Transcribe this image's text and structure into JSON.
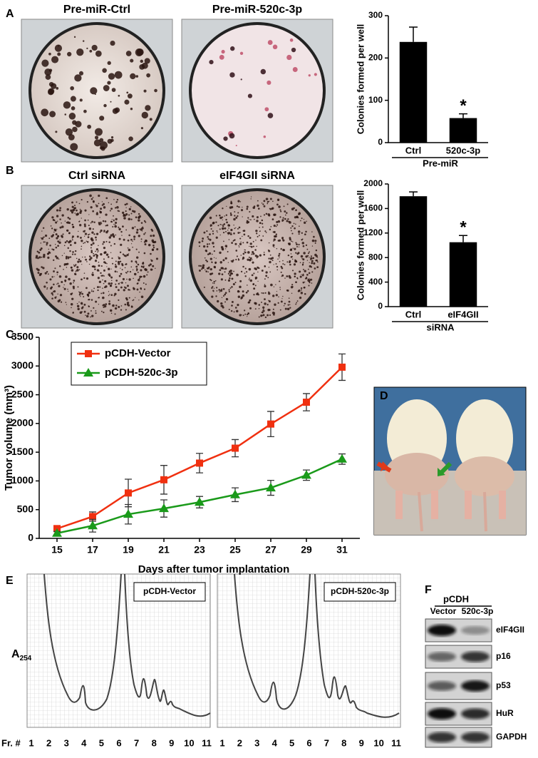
{
  "panel_labels": [
    "A",
    "B",
    "C",
    "D",
    "E",
    "F"
  ],
  "photos": {
    "A": [
      "Pre-miR-Ctrl",
      "Pre-miR-520c-3p"
    ],
    "B": [
      "Ctrl siRNA",
      "eIF4GII siRNA"
    ]
  },
  "chart_data": [
    {
      "type": "bar",
      "ylabel": "Colonies formed per well",
      "categories": [
        "Ctrl",
        "520c-3p"
      ],
      "group_label": "Pre-miR",
      "values": [
        238,
        58
      ],
      "errors": [
        35,
        10
      ],
      "annotations": [
        null,
        "*"
      ],
      "color": "#000000",
      "ylim": [
        0,
        300
      ],
      "yticks": [
        0,
        100,
        200,
        300
      ]
    },
    {
      "type": "bar",
      "ylabel": "Colonies formed per well",
      "categories": [
        "Ctrl",
        "eIF4GII"
      ],
      "group_label": "siRNA",
      "values": [
        1800,
        1050
      ],
      "errors": [
        70,
        110
      ],
      "annotations": [
        null,
        "*"
      ],
      "color": "#000000",
      "ylim": [
        0,
        2000
      ],
      "yticks": [
        0,
        400,
        800,
        1200,
        1600,
        2000
      ]
    },
    {
      "type": "line",
      "ylabel": "Tumor volume (mm³)",
      "xlabel": "Days after tumor implantation",
      "x": [
        15,
        17,
        19,
        21,
        23,
        25,
        27,
        29,
        31
      ],
      "xlim": [
        14,
        32
      ],
      "xticks": [
        15,
        17,
        19,
        21,
        23,
        25,
        27,
        29,
        31
      ],
      "ylim": [
        0,
        3500
      ],
      "yticks": [
        0,
        500,
        1000,
        1500,
        2000,
        2500,
        3000,
        3500
      ],
      "series": [
        {
          "name": "pCDH-Vector",
          "color": "#f03010",
          "marker": "square",
          "values": [
            170,
            380,
            790,
            1020,
            1310,
            1570,
            1990,
            2370,
            2980
          ],
          "errors": [
            30,
            80,
            240,
            250,
            170,
            150,
            220,
            150,
            230
          ]
        },
        {
          "name": "pCDH-520c-3p",
          "color": "#1a9a1a",
          "marker": "triangle",
          "values": [
            90,
            220,
            420,
            520,
            630,
            760,
            880,
            1100,
            1380
          ],
          "errors": [
            30,
            110,
            170,
            150,
            100,
            120,
            130,
            90,
            90
          ]
        }
      ]
    }
  ],
  "panel_E": {
    "ylabel": "A",
    "ylabel_subscript": "254",
    "fraction_label": "Fr. #",
    "fractions": [
      "1",
      "2",
      "3",
      "4",
      "5",
      "6",
      "7",
      "8",
      "9",
      "10",
      "11"
    ],
    "traces": [
      "pCDH-Vector",
      "pCDH-520c-3p"
    ]
  },
  "panel_F": {
    "group": "pCDH",
    "lanes": [
      "Vector",
      "520c-3p"
    ],
    "proteins": [
      "eIF4GII",
      "p16",
      "p53",
      "HuR",
      "GAPDH"
    ]
  }
}
